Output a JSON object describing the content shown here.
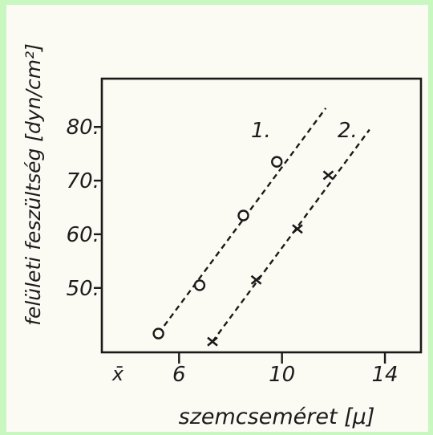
{
  "chart_data": {
    "type": "scatter",
    "xlabel": "szemcseméret [μ]",
    "ylabel": "felületi feszültség [dyn/cm²]",
    "xlim": [
      3.0,
      15.4
    ],
    "ylim": [
      38.0,
      89.0
    ],
    "x_ticks": [
      6,
      10,
      14
    ],
    "x_tick_labels": [
      "6",
      "10",
      "14"
    ],
    "x_extra_label": "x̄",
    "y_ticks": [
      50,
      60,
      70,
      80
    ],
    "y_tick_labels": [
      "50.",
      "60.",
      "70.",
      "80."
    ],
    "grid": false,
    "series": [
      {
        "name": "1.",
        "marker": "circle",
        "line": "dashed",
        "x": [
          5.2,
          6.8,
          8.5,
          9.8
        ],
        "y": [
          41.5,
          50.5,
          63.5,
          73.5
        ],
        "fit_line": {
          "x": [
            5.2,
            11.7
          ],
          "y": [
            41.5,
            83.5
          ]
        }
      },
      {
        "name": "2.",
        "marker": "cross",
        "line": "dashed",
        "x": [
          7.3,
          9.0,
          10.6,
          11.8
        ],
        "y": [
          40.0,
          51.5,
          61.0,
          71.0
        ],
        "fit_line": {
          "x": [
            7.3,
            13.4
          ],
          "y": [
            40.0,
            79.5
          ]
        }
      }
    ]
  }
}
